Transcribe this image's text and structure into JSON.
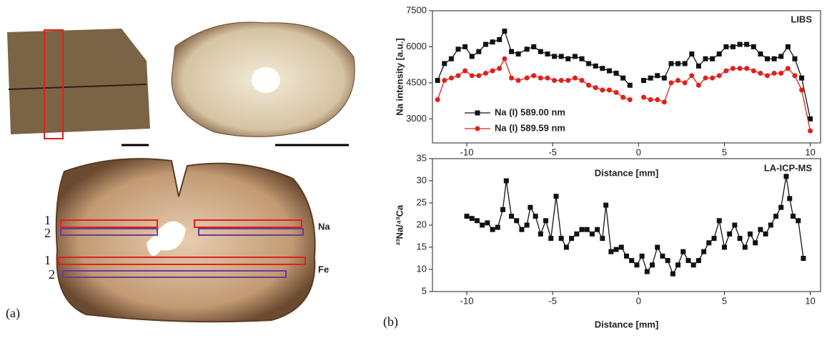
{
  "panels": {
    "a": "(a)",
    "b": "(b)"
  },
  "photo_labels": {
    "na": "Na",
    "fe": "Fe",
    "na_1": "1",
    "na_2": "2",
    "fe_1": "1",
    "fe_2": "2"
  },
  "chart_data": [
    {
      "type": "line",
      "title": "LIBS",
      "x_label": "Distance [mm]",
      "y_label": "Na intensity [a.u.]",
      "xlim": [
        -12,
        10.6
      ],
      "xticks": [
        -10,
        -5,
        0,
        5,
        10
      ],
      "ylim": [
        2000,
        7500
      ],
      "yticks": [
        3000,
        4500,
        6000,
        7500
      ],
      "legend": "lower-left",
      "x": [
        -11.7,
        -11.3,
        -10.9,
        -10.5,
        -10.1,
        -9.7,
        -9.3,
        -8.9,
        -8.5,
        -8.1,
        -7.8,
        -7.4,
        -7.0,
        -6.5,
        -6.1,
        -5.7,
        -5.3,
        -4.9,
        -4.5,
        -4.1,
        -3.7,
        -3.3,
        -2.9,
        -2.5,
        -2.1,
        -1.7,
        -1.3,
        -0.9,
        -0.5,
        -0.1,
        0.3,
        0.7,
        1.1,
        1.5,
        1.9,
        2.3,
        2.7,
        3.1,
        3.5,
        3.9,
        4.3,
        4.7,
        5.1,
        5.5,
        5.9,
        6.3,
        6.7,
        7.1,
        7.5,
        7.9,
        8.3,
        8.7,
        9.1,
        9.5,
        10.0
      ],
      "series": [
        {
          "name": "Na (I) 589.00 nm",
          "color": "#111111",
          "marker": "square",
          "values": [
            4600,
            5300,
            5500,
            5900,
            6000,
            5600,
            5800,
            6100,
            6200,
            6300,
            6650,
            5800,
            5700,
            5900,
            6000,
            5800,
            5700,
            5600,
            5600,
            5500,
            5600,
            5500,
            5300,
            5200,
            5100,
            5000,
            4900,
            4700,
            4400,
            null,
            4600,
            4700,
            4800,
            4700,
            5300,
            5300,
            5300,
            5700,
            5200,
            5500,
            5500,
            5700,
            6000,
            6000,
            6100,
            6100,
            6000,
            5700,
            5500,
            5500,
            5600,
            6000,
            5500,
            4700,
            3000
          ]
        },
        {
          "name": "Na (I) 589.59 nm",
          "color": "#e0201b",
          "marker": "circle",
          "values": [
            3800,
            4600,
            4700,
            4800,
            5000,
            4800,
            4800,
            4900,
            5000,
            5100,
            5500,
            4700,
            4600,
            4700,
            4800,
            4700,
            4700,
            4600,
            4600,
            4600,
            4700,
            4600,
            4400,
            4300,
            4200,
            4200,
            4100,
            3900,
            3800,
            null,
            3900,
            3800,
            3800,
            3700,
            4500,
            4600,
            4500,
            4800,
            4400,
            4700,
            4700,
            4800,
            5000,
            5100,
            5100,
            5100,
            5000,
            4900,
            4800,
            4900,
            4900,
            5100,
            4800,
            4200,
            2500
          ]
        }
      ]
    },
    {
      "type": "line",
      "title": "LA-ICP-MS",
      "x_label": "Distance [mm]",
      "y_label": "²³Na/⁴³Ca",
      "xlim": [
        -12,
        10.6
      ],
      "xticks": [
        -10,
        -5,
        0,
        5,
        10
      ],
      "ylim": [
        5,
        35
      ],
      "yticks": [
        5,
        10,
        15,
        20,
        25,
        30,
        35
      ],
      "x": [
        -10,
        -9.7,
        -9.4,
        -9.1,
        -8.8,
        -8.5,
        -8.2,
        -7.9,
        -7.7,
        -7.4,
        -7.1,
        -6.8,
        -6.5,
        -6.3,
        -6,
        -5.7,
        -5.4,
        -5.1,
        -4.8,
        -4.5,
        -4.2,
        -3.9,
        -3.6,
        -3.3,
        -3,
        -2.7,
        -2.4,
        -2.1,
        -1.9,
        -1.6,
        -1.3,
        -1,
        -0.7,
        -0.4,
        -0.1,
        0.2,
        0.5,
        0.8,
        1.1,
        1.4,
        1.7,
        2,
        2.3,
        2.6,
        2.9,
        3.2,
        3.5,
        3.8,
        4.1,
        4.4,
        4.7,
        5,
        5.3,
        5.6,
        5.9,
        6.2,
        6.5,
        6.8,
        7.1,
        7.4,
        7.7,
        8,
        8.3,
        8.6,
        8.8,
        9,
        9.3,
        9.6
      ],
      "series": [
        {
          "color": "#111111",
          "marker": "square",
          "values": [
            22,
            21.5,
            21,
            20,
            20.5,
            19,
            19.5,
            23.5,
            30,
            22,
            21,
            19,
            20,
            24,
            22,
            18,
            21,
            17,
            26.5,
            17,
            15,
            17,
            18,
            19,
            19,
            18,
            19,
            17,
            24.5,
            14,
            14.5,
            15,
            13,
            12,
            11,
            13,
            9.5,
            11,
            15,
            13,
            12,
            9,
            11,
            14,
            12,
            11,
            12,
            14,
            16,
            17,
            21,
            15,
            18,
            20,
            17,
            15,
            18,
            16,
            19,
            18,
            20,
            22,
            24,
            31,
            26,
            22,
            21,
            12.5
          ]
        }
      ]
    }
  ]
}
